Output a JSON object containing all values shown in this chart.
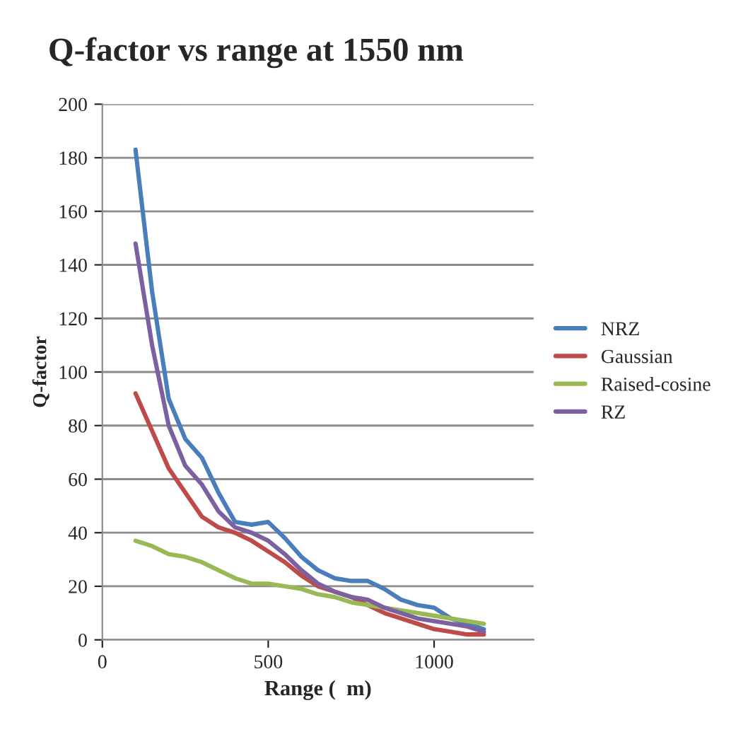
{
  "chart_data": {
    "type": "line",
    "title": "Q-factor vs range at 1550 nm",
    "xlabel": "Range (  m)",
    "ylabel": "Q-factor",
    "x": [
      100,
      150,
      200,
      250,
      300,
      350,
      400,
      450,
      500,
      550,
      600,
      650,
      700,
      750,
      800,
      850,
      900,
      950,
      1000,
      1050,
      1100,
      1150
    ],
    "series": [
      {
        "name": "NRZ",
        "color": "#4a7ebb",
        "values": [
          183,
          130,
          90,
          75,
          68,
          55,
          44,
          43,
          44,
          38,
          31,
          26,
          23,
          22,
          22,
          19,
          15,
          13,
          12,
          8,
          6,
          4
        ]
      },
      {
        "name": "Gaussian",
        "color": "#be4b48",
        "values": [
          92,
          78,
          64,
          55,
          46,
          42,
          40,
          37,
          33,
          29,
          24,
          20,
          18,
          16,
          13,
          10,
          8,
          6,
          4,
          3,
          2,
          2
        ]
      },
      {
        "name": "Raised-cosine",
        "color": "#98b954",
        "values": [
          37,
          35,
          32,
          31,
          29,
          26,
          23,
          21,
          21,
          20,
          19,
          17,
          16,
          14,
          13,
          12,
          11,
          10,
          9,
          8,
          7,
          6
        ]
      },
      {
        "name": "RZ",
        "color": "#7d60a0",
        "values": [
          148,
          110,
          80,
          65,
          58,
          48,
          42,
          40,
          37,
          32,
          26,
          21,
          18,
          16,
          15,
          12,
          10,
          8,
          7,
          6,
          5,
          3
        ]
      }
    ],
    "xlim": [
      0,
      1300
    ],
    "xticks": [
      0,
      500,
      1000
    ],
    "ylim": [
      0,
      200
    ],
    "yticks": [
      0,
      20,
      40,
      60,
      80,
      100,
      120,
      140,
      160,
      180,
      200
    ],
    "grid": "y",
    "legend": "right",
    "marker": "none",
    "line_style": "solid"
  }
}
